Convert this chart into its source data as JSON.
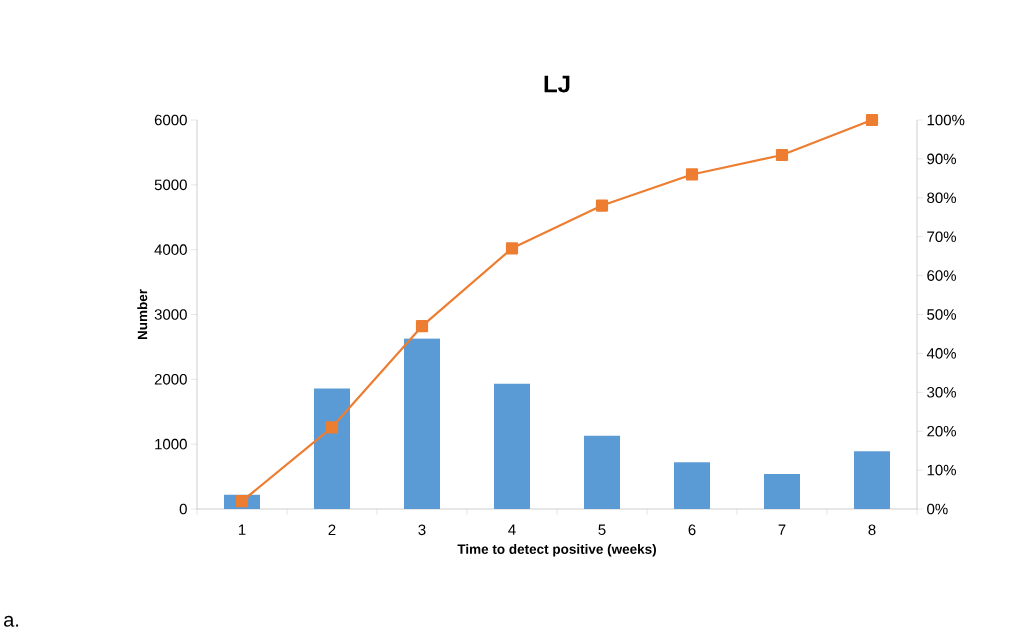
{
  "chart_data": {
    "type": "bar",
    "title": "LJ",
    "xlabel": "Time to detect positive (weeks)",
    "ylabel": "Number",
    "categories": [
      "1",
      "2",
      "3",
      "4",
      "5",
      "6",
      "7",
      "8"
    ],
    "series": [
      {
        "color": "#5b9bd5",
        "values": [
          220,
          1860,
          2630,
          1930,
          1130,
          720,
          540,
          890
        ]
      },
      {
        "type": "line",
        "axis": "y2",
        "color": "#ed7d31",
        "marker": "square",
        "values": [
          2,
          21,
          47,
          67,
          78,
          86,
          91,
          100
        ]
      }
    ],
    "ylim": [
      0,
      6000
    ],
    "yticks": [
      0,
      1000,
      2000,
      3000,
      4000,
      5000,
      6000
    ],
    "y2lim": [
      0,
      100
    ],
    "y2ticks": [
      {
        "value": 0,
        "label": "0%"
      },
      {
        "value": 10,
        "label": "10%"
      },
      {
        "value": 20,
        "label": "20%"
      },
      {
        "value": 30,
        "label": "30%"
      },
      {
        "value": 40,
        "label": "40%"
      },
      {
        "value": 50,
        "label": "50%"
      },
      {
        "value": 60,
        "label": "60%"
      },
      {
        "value": 70,
        "label": "70%"
      },
      {
        "value": 80,
        "label": "80%"
      },
      {
        "value": 90,
        "label": "90%"
      },
      {
        "value": 100,
        "label": "100%"
      }
    ],
    "annotations": [
      "a."
    ]
  }
}
